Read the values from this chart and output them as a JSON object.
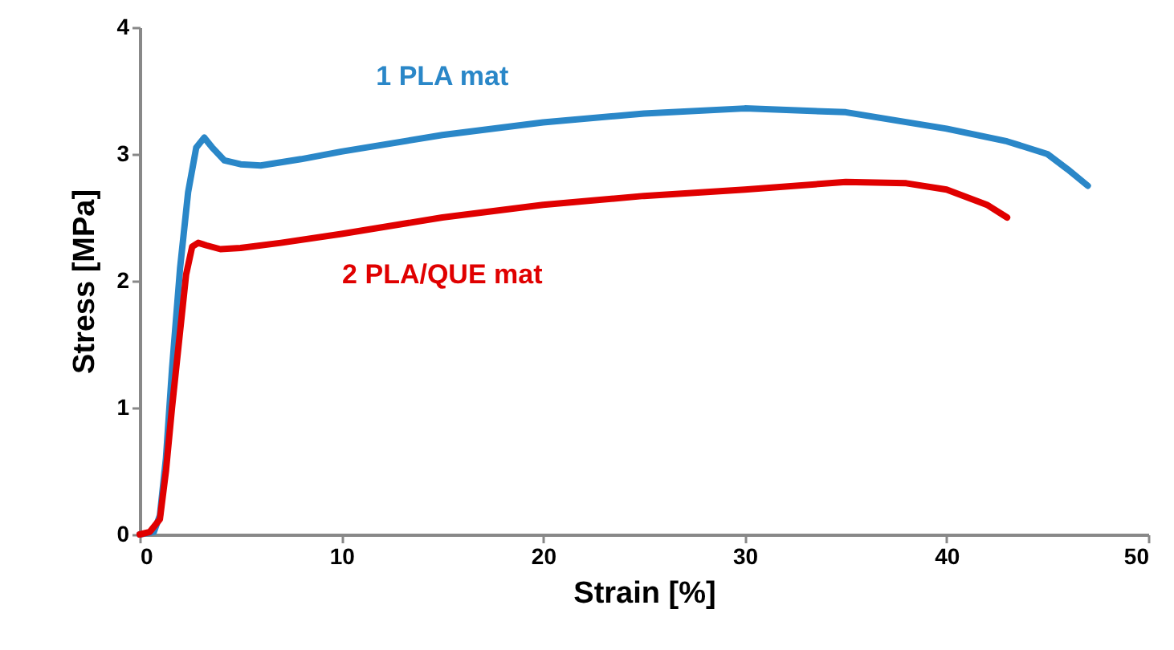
{
  "chart_data": {
    "type": "line",
    "xlabel": "Strain [%]",
    "ylabel": "Stress [MPa]",
    "xlim": [
      0,
      50
    ],
    "xticks": [
      0,
      10,
      20,
      30,
      40,
      50
    ],
    "ylim": [
      0,
      4
    ],
    "yticks": [
      0,
      1,
      2,
      3,
      4
    ],
    "grid": false,
    "legend": false,
    "marker": "none",
    "line_style": "solid",
    "series": [
      {
        "name": "1 PLA mat",
        "color": "#2a87c8",
        "x": [
          0,
          0.7,
          1.0,
          1.3,
          1.6,
          2.0,
          2.4,
          2.8,
          3.2,
          3.6,
          4.2,
          5,
          6,
          8,
          10,
          15,
          20,
          25,
          30,
          35,
          40,
          43,
          45,
          46,
          47
        ],
        "values": [
          0,
          0.02,
          0.15,
          0.6,
          1.3,
          2.1,
          2.7,
          3.05,
          3.13,
          3.05,
          2.95,
          2.92,
          2.91,
          2.96,
          3.02,
          3.15,
          3.25,
          3.32,
          3.36,
          3.33,
          3.2,
          3.1,
          3.0,
          2.88,
          2.75
        ]
      },
      {
        "name": "2 PLA/QUE mat",
        "color": "#e00000",
        "x": [
          0,
          0.5,
          1.0,
          1.3,
          1.6,
          2.0,
          2.3,
          2.6,
          2.9,
          3.3,
          4,
          5,
          7,
          10,
          15,
          20,
          25,
          30,
          35,
          38,
          40,
          42,
          43
        ],
        "values": [
          0,
          0.02,
          0.12,
          0.5,
          1.0,
          1.6,
          2.05,
          2.27,
          2.3,
          2.28,
          2.25,
          2.26,
          2.3,
          2.37,
          2.5,
          2.6,
          2.67,
          2.72,
          2.78,
          2.77,
          2.72,
          2.6,
          2.5
        ]
      }
    ]
  }
}
